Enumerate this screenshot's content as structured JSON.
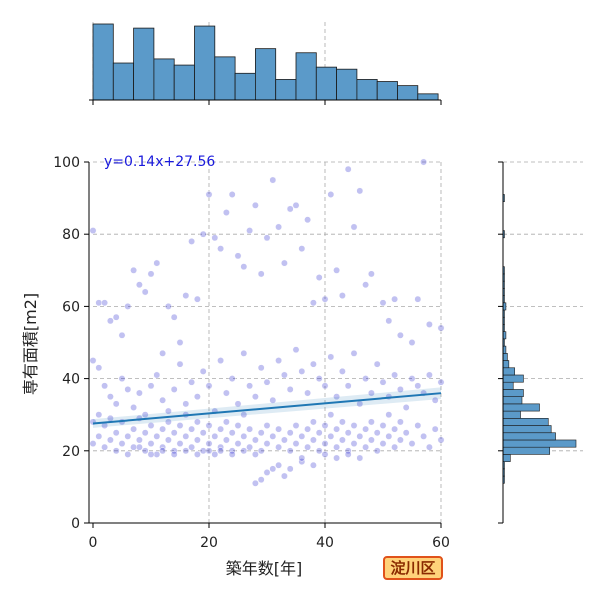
{
  "badge_label": "淀川区",
  "colors": {
    "scatter": "#2222cc",
    "hist": "#5b9ac9",
    "regression": "#1f77b4",
    "badge_fill": "#ffd27a",
    "badge_border": "#e0521a"
  },
  "chart_data": [
    {
      "type": "scatter",
      "name": "main",
      "xlabel": "築年数[年]",
      "ylabel": "専有面積[m2]",
      "xlim": [
        0,
        60
      ],
      "ylim": [
        0,
        100
      ],
      "xticks": [
        0,
        20,
        40,
        60
      ],
      "yticks": [
        0,
        20,
        40,
        60,
        80,
        100
      ],
      "grid": true,
      "regression": {
        "slope": 0.14,
        "intercept": 27.56,
        "label": "y=0.14x+27.56"
      },
      "points": [
        [
          0,
          81
        ],
        [
          1,
          61
        ],
        [
          2,
          61
        ],
        [
          3,
          56
        ],
        [
          4,
          57
        ],
        [
          5,
          52
        ],
        [
          6,
          60
        ],
        [
          7,
          70
        ],
        [
          8,
          66
        ],
        [
          9,
          64
        ],
        [
          10,
          69
        ],
        [
          11,
          72
        ],
        [
          12,
          47
        ],
        [
          13,
          60
        ],
        [
          14,
          57
        ],
        [
          15,
          50
        ],
        [
          16,
          63
        ],
        [
          17,
          78
        ],
        [
          18,
          62
        ],
        [
          19,
          80
        ],
        [
          20,
          91
        ],
        [
          21,
          79
        ],
        [
          22,
          76
        ],
        [
          23,
          86
        ],
        [
          24,
          91
        ],
        [
          25,
          74
        ],
        [
          26,
          71
        ],
        [
          27,
          81
        ],
        [
          28,
          88
        ],
        [
          29,
          69
        ],
        [
          30,
          79
        ],
        [
          31,
          95
        ],
        [
          32,
          82
        ],
        [
          33,
          72
        ],
        [
          34,
          87
        ],
        [
          35,
          88
        ],
        [
          36,
          76
        ],
        [
          37,
          84
        ],
        [
          38,
          61
        ],
        [
          39,
          68
        ],
        [
          40,
          62
        ],
        [
          41,
          91
        ],
        [
          42,
          70
        ],
        [
          43,
          63
        ],
        [
          44,
          98
        ],
        [
          45,
          82
        ],
        [
          46,
          92
        ],
        [
          47,
          66
        ],
        [
          48,
          69
        ],
        [
          50,
          61
        ],
        [
          51,
          56
        ],
        [
          52,
          62
        ],
        [
          53,
          52
        ],
        [
          55,
          50
        ],
        [
          56,
          62
        ],
        [
          57,
          100
        ],
        [
          58,
          55
        ],
        [
          60,
          54
        ],
        [
          0,
          45
        ],
        [
          1,
          43
        ],
        [
          2,
          38
        ],
        [
          3,
          35
        ],
        [
          4,
          33
        ],
        [
          5,
          40
        ],
        [
          6,
          37
        ],
        [
          7,
          32
        ],
        [
          8,
          36
        ],
        [
          9,
          30
        ],
        [
          10,
          38
        ],
        [
          11,
          41
        ],
        [
          12,
          34
        ],
        [
          13,
          31
        ],
        [
          14,
          37
        ],
        [
          15,
          44
        ],
        [
          16,
          33
        ],
        [
          17,
          39
        ],
        [
          18,
          35
        ],
        [
          19,
          42
        ],
        [
          20,
          38
        ],
        [
          21,
          31
        ],
        [
          22,
          45
        ],
        [
          23,
          36
        ],
        [
          24,
          40
        ],
        [
          25,
          33
        ],
        [
          26,
          47
        ],
        [
          27,
          38
        ],
        [
          28,
          35
        ],
        [
          29,
          43
        ],
        [
          30,
          39
        ],
        [
          31,
          34
        ],
        [
          32,
          45
        ],
        [
          33,
          41
        ],
        [
          34,
          37
        ],
        [
          35,
          48
        ],
        [
          36,
          42
        ],
        [
          37,
          36
        ],
        [
          38,
          44
        ],
        [
          39,
          40
        ],
        [
          40,
          38
        ],
        [
          41,
          46
        ],
        [
          42,
          35
        ],
        [
          43,
          42
        ],
        [
          44,
          38
        ],
        [
          45,
          47
        ],
        [
          46,
          33
        ],
        [
          47,
          40
        ],
        [
          48,
          36
        ],
        [
          49,
          44
        ],
        [
          50,
          39
        ],
        [
          51,
          35
        ],
        [
          52,
          41
        ],
        [
          53,
          37
        ],
        [
          54,
          32
        ],
        [
          55,
          40
        ],
        [
          56,
          38
        ],
        [
          57,
          36
        ],
        [
          58,
          41
        ],
        [
          59,
          34
        ],
        [
          60,
          39
        ],
        [
          0,
          22
        ],
        [
          0,
          28
        ],
        [
          1,
          24
        ],
        [
          1,
          30
        ],
        [
          2,
          21
        ],
        [
          2,
          27
        ],
        [
          3,
          23
        ],
        [
          3,
          29
        ],
        [
          4,
          25
        ],
        [
          4,
          20
        ],
        [
          5,
          22
        ],
        [
          5,
          28
        ],
        [
          6,
          24
        ],
        [
          6,
          19
        ],
        [
          7,
          21
        ],
        [
          7,
          26
        ],
        [
          8,
          23
        ],
        [
          8,
          29
        ],
        [
          9,
          25
        ],
        [
          9,
          20
        ],
        [
          10,
          22
        ],
        [
          10,
          27
        ],
        [
          11,
          24
        ],
        [
          11,
          19
        ],
        [
          12,
          21
        ],
        [
          12,
          26
        ],
        [
          13,
          23
        ],
        [
          13,
          28
        ],
        [
          14,
          25
        ],
        [
          14,
          20
        ],
        [
          15,
          22
        ],
        [
          15,
          27
        ],
        [
          16,
          24
        ],
        [
          16,
          30
        ],
        [
          17,
          21
        ],
        [
          17,
          26
        ],
        [
          18,
          23
        ],
        [
          18,
          28
        ],
        [
          19,
          25
        ],
        [
          19,
          20
        ],
        [
          20,
          22
        ],
        [
          20,
          27
        ],
        [
          21,
          24
        ],
        [
          21,
          19
        ],
        [
          22,
          21
        ],
        [
          22,
          26
        ],
        [
          23,
          23
        ],
        [
          23,
          28
        ],
        [
          24,
          25
        ],
        [
          24,
          20
        ],
        [
          25,
          22
        ],
        [
          25,
          27
        ],
        [
          26,
          24
        ],
        [
          26,
          30
        ],
        [
          27,
          21
        ],
        [
          27,
          26
        ],
        [
          28,
          23
        ],
        [
          28,
          19
        ],
        [
          29,
          25
        ],
        [
          29,
          20
        ],
        [
          30,
          22
        ],
        [
          30,
          27
        ],
        [
          31,
          24
        ],
        [
          31,
          15
        ],
        [
          32,
          21
        ],
        [
          32,
          26
        ],
        [
          33,
          23
        ],
        [
          33,
          13
        ],
        [
          34,
          25
        ],
        [
          34,
          20
        ],
        [
          35,
          22
        ],
        [
          35,
          27
        ],
        [
          36,
          24
        ],
        [
          36,
          17
        ],
        [
          37,
          21
        ],
        [
          37,
          26
        ],
        [
          38,
          23
        ],
        [
          38,
          28
        ],
        [
          39,
          25
        ],
        [
          39,
          20
        ],
        [
          40,
          22
        ],
        [
          40,
          27
        ],
        [
          41,
          24
        ],
        [
          41,
          30
        ],
        [
          42,
          21
        ],
        [
          42,
          26
        ],
        [
          43,
          23
        ],
        [
          43,
          28
        ],
        [
          44,
          25
        ],
        [
          44,
          20
        ],
        [
          45,
          22
        ],
        [
          45,
          27
        ],
        [
          46,
          24
        ],
        [
          46,
          18
        ],
        [
          47,
          21
        ],
        [
          47,
          26
        ],
        [
          48,
          23
        ],
        [
          48,
          28
        ],
        [
          49,
          25
        ],
        [
          49,
          20
        ],
        [
          50,
          22
        ],
        [
          50,
          27
        ],
        [
          51,
          24
        ],
        [
          51,
          30
        ],
        [
          52,
          21
        ],
        [
          52,
          26
        ],
        [
          53,
          23
        ],
        [
          53,
          28
        ],
        [
          54,
          25
        ],
        [
          55,
          22
        ],
        [
          56,
          27
        ],
        [
          57,
          24
        ],
        [
          58,
          21
        ],
        [
          59,
          26
        ],
        [
          60,
          23
        ],
        [
          28,
          11
        ],
        [
          29,
          12
        ],
        [
          30,
          14
        ],
        [
          32,
          16
        ],
        [
          34,
          15
        ],
        [
          36,
          18
        ],
        [
          38,
          16
        ],
        [
          40,
          19
        ],
        [
          42,
          18
        ],
        [
          44,
          19
        ],
        [
          20,
          20
        ],
        [
          22,
          20
        ],
        [
          24,
          19
        ],
        [
          26,
          20
        ],
        [
          18,
          19
        ],
        [
          16,
          20
        ],
        [
          14,
          19
        ],
        [
          12,
          20
        ],
        [
          10,
          19
        ],
        [
          8,
          21
        ]
      ]
    },
    {
      "type": "bar",
      "name": "top-histogram",
      "xlim": [
        0,
        60
      ],
      "bins": [
        {
          "x0": 0,
          "x1": 3.5,
          "count": 37
        },
        {
          "x0": 3.5,
          "x1": 7,
          "count": 18
        },
        {
          "x0": 7,
          "x1": 10.5,
          "count": 35
        },
        {
          "x0": 10.5,
          "x1": 14,
          "count": 20
        },
        {
          "x0": 14,
          "x1": 17.5,
          "count": 17
        },
        {
          "x0": 17.5,
          "x1": 21,
          "count": 36
        },
        {
          "x0": 21,
          "x1": 24.5,
          "count": 21
        },
        {
          "x0": 24.5,
          "x1": 28,
          "count": 13
        },
        {
          "x0": 28,
          "x1": 31.5,
          "count": 25
        },
        {
          "x0": 31.5,
          "x1": 35,
          "count": 10
        },
        {
          "x0": 35,
          "x1": 38.5,
          "count": 23
        },
        {
          "x0": 38.5,
          "x1": 42,
          "count": 16
        },
        {
          "x0": 42,
          "x1": 45.5,
          "count": 15
        },
        {
          "x0": 45.5,
          "x1": 49,
          "count": 10
        },
        {
          "x0": 49,
          "x1": 52.5,
          "count": 9
        },
        {
          "x0": 52.5,
          "x1": 56,
          "count": 7
        },
        {
          "x0": 56,
          "x1": 59.5,
          "count": 3
        }
      ]
    },
    {
      "type": "bar",
      "name": "right-histogram",
      "orientation": "horizontal",
      "ylim": [
        0,
        100
      ],
      "bins": [
        {
          "y0": 11,
          "y1": 13,
          "count": 1
        },
        {
          "y0": 13,
          "y1": 15,
          "count": 1
        },
        {
          "y0": 15,
          "y1": 17,
          "count": 1
        },
        {
          "y0": 17,
          "y1": 19,
          "count": 5
        },
        {
          "y0": 19,
          "y1": 21,
          "count": 32
        },
        {
          "y0": 21,
          "y1": 23,
          "count": 50
        },
        {
          "y0": 23,
          "y1": 25,
          "count": 36
        },
        {
          "y0": 25,
          "y1": 27,
          "count": 33
        },
        {
          "y0": 27,
          "y1": 29,
          "count": 31
        },
        {
          "y0": 29,
          "y1": 31,
          "count": 12
        },
        {
          "y0": 31,
          "y1": 33,
          "count": 25
        },
        {
          "y0": 33,
          "y1": 35,
          "count": 13
        },
        {
          "y0": 35,
          "y1": 37,
          "count": 14
        },
        {
          "y0": 37,
          "y1": 39,
          "count": 7
        },
        {
          "y0": 39,
          "y1": 41,
          "count": 14
        },
        {
          "y0": 41,
          "y1": 43,
          "count": 8
        },
        {
          "y0": 43,
          "y1": 45,
          "count": 4
        },
        {
          "y0": 45,
          "y1": 47,
          "count": 3
        },
        {
          "y0": 47,
          "y1": 49,
          "count": 2
        },
        {
          "y0": 49,
          "y1": 51,
          "count": 1
        },
        {
          "y0": 51,
          "y1": 53,
          "count": 2
        },
        {
          "y0": 53,
          "y1": 55,
          "count": 1
        },
        {
          "y0": 55,
          "y1": 57,
          "count": 1
        },
        {
          "y0": 57,
          "y1": 59,
          "count": 1
        },
        {
          "y0": 59,
          "y1": 61,
          "count": 2
        },
        {
          "y0": 61,
          "y1": 63,
          "count": 1
        },
        {
          "y0": 63,
          "y1": 65,
          "count": 1
        },
        {
          "y0": 65,
          "y1": 67,
          "count": 1
        },
        {
          "y0": 67,
          "y1": 69,
          "count": 1
        },
        {
          "y0": 69,
          "y1": 71,
          "count": 1
        },
        {
          "y0": 79,
          "y1": 81,
          "count": 1
        },
        {
          "y0": 89,
          "y1": 91,
          "count": 1
        }
      ]
    }
  ]
}
